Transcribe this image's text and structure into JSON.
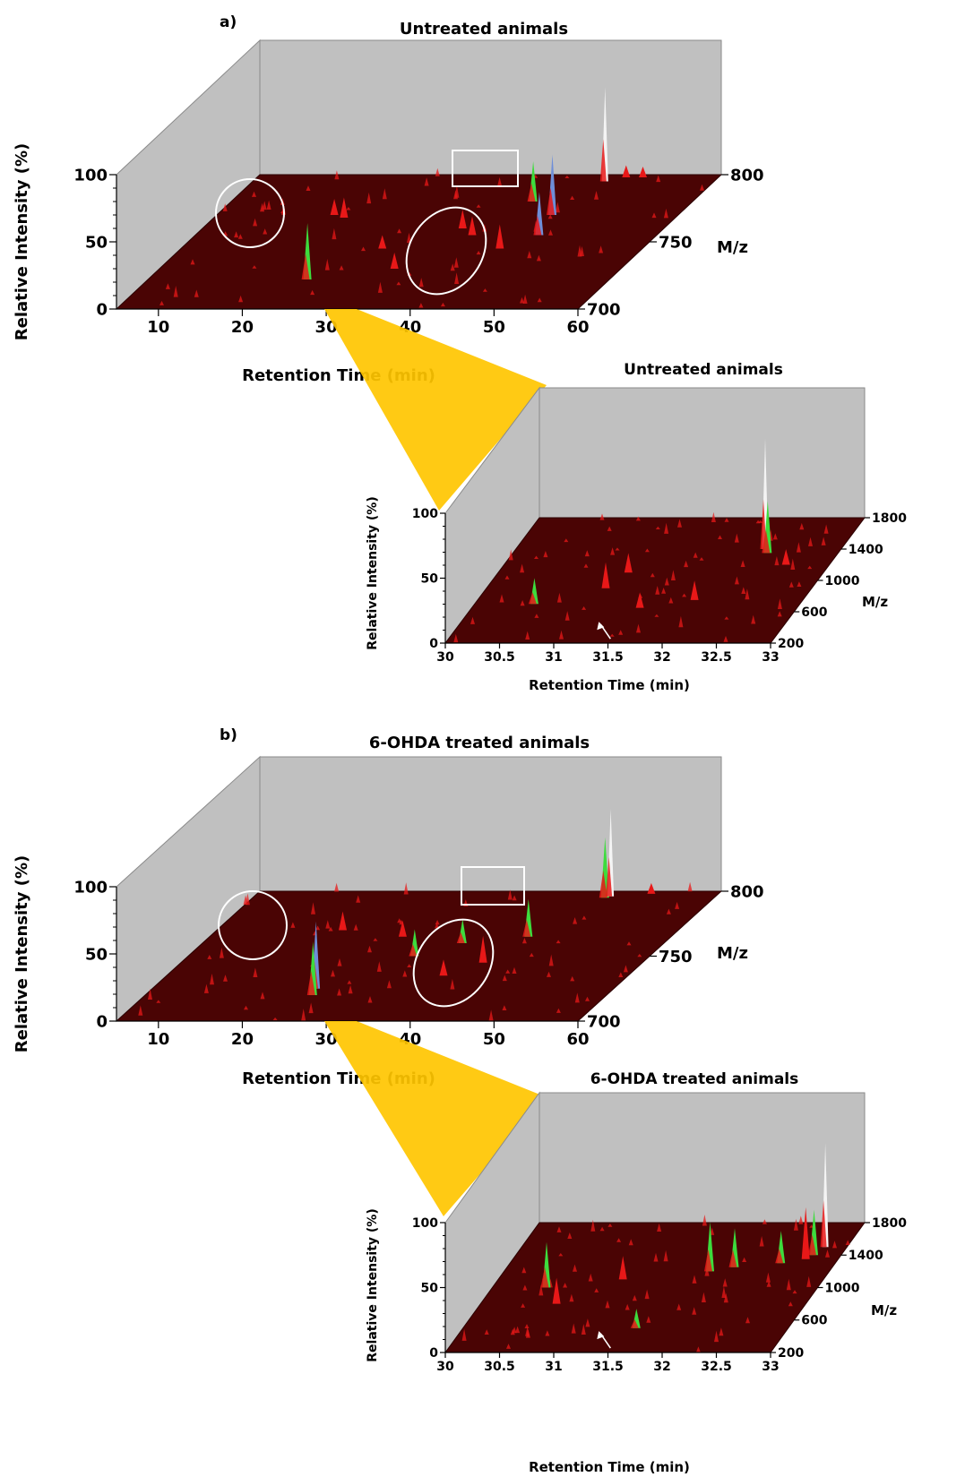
{
  "colors": {
    "wall": "#c0c0c0",
    "wall_edge": "#8a8a8a",
    "floor": "#4a0404",
    "peak_red": "#e81818",
    "peak_green": "#3ddc3d",
    "peak_blue": "#6e8ed8",
    "peak_white": "#f4f4f4",
    "zoom_fill": "#ffc600",
    "annotation": "#ffffff"
  },
  "chart_data": [
    {
      "panel_label": "a)",
      "type": "3d-spectrum",
      "title": "Untreated animals",
      "xlabel": "Retention Time (min)",
      "ylabel": "Relative Intensity (%)",
      "zlabel": "M/z",
      "xlim": [
        5,
        60
      ],
      "ylim": [
        0,
        100
      ],
      "zlim": [
        700,
        800
      ],
      "x_ticks": [
        "10",
        "20",
        "30",
        "40",
        "50",
        "60"
      ],
      "y_ticks": [
        "0",
        "50",
        "100"
      ],
      "z_ticks": [
        "700",
        "750",
        "800"
      ],
      "peaks": [
        {
          "x": 19,
          "mz": 770,
          "y": 12,
          "color": "red"
        },
        {
          "x": 20.5,
          "mz": 768,
          "y": 15,
          "color": "red"
        },
        {
          "x": 24,
          "mz": 722,
          "y": 42,
          "color": "green"
        },
        {
          "x": 29,
          "mz": 745,
          "y": 10,
          "color": "red"
        },
        {
          "x": 33,
          "mz": 730,
          "y": 12,
          "color": "red"
        },
        {
          "x": 36,
          "mz": 760,
          "y": 14,
          "color": "red"
        },
        {
          "x": 41,
          "mz": 780,
          "y": 30,
          "color": "green"
        },
        {
          "x": 43,
          "mz": 745,
          "y": 18,
          "color": "red"
        },
        {
          "x": 45,
          "mz": 770,
          "y": 45,
          "color": "blue"
        },
        {
          "x": 47,
          "mz": 795,
          "y": 70,
          "color": "white"
        },
        {
          "x": 49,
          "mz": 798,
          "y": 9,
          "color": "red"
        },
        {
          "x": 51,
          "mz": 798,
          "y": 8,
          "color": "red"
        },
        {
          "x": 38,
          "mz": 755,
          "y": 14,
          "color": "red"
        },
        {
          "x": 46,
          "mz": 755,
          "y": 32,
          "color": "blue"
        }
      ]
    },
    {
      "type": "3d-spectrum",
      "title": "Untreated animals",
      "xlabel": "Retention Time (min)",
      "ylabel": "Relative Intensity (%)",
      "zlabel": "M/z",
      "xlim": [
        30,
        33
      ],
      "ylim": [
        0,
        100
      ],
      "zlim": [
        200,
        1800
      ],
      "x_ticks": [
        "30",
        "30.5",
        "31",
        "31.5",
        "32",
        "32.5",
        "33"
      ],
      "y_ticks": [
        "0",
        "50",
        "100"
      ],
      "z_ticks": [
        "200",
        "600",
        "1000",
        "1400",
        "1800"
      ],
      "peaks": [
        {
          "x": 30.55,
          "mz": 700,
          "y": 20,
          "color": "green"
        },
        {
          "x": 31.1,
          "mz": 900,
          "y": 20,
          "color": "red"
        },
        {
          "x": 31.2,
          "mz": 1100,
          "y": 15,
          "color": "red"
        },
        {
          "x": 31.55,
          "mz": 650,
          "y": 12,
          "color": "red"
        },
        {
          "x": 32.0,
          "mz": 750,
          "y": 15,
          "color": "red"
        },
        {
          "x": 32.3,
          "mz": 1400,
          "y": 85,
          "color": "white"
        },
        {
          "x": 32.35,
          "mz": 1350,
          "y": 40,
          "color": "green"
        },
        {
          "x": 32.6,
          "mz": 1200,
          "y": 12,
          "color": "red"
        }
      ]
    },
    {
      "panel_label": "b)",
      "type": "3d-spectrum",
      "title": "6-OHDA treated animals",
      "xlabel": "Retention Time (min)",
      "ylabel": "Relative Intensity (%)",
      "zlabel": "M/z",
      "xlim": [
        5,
        60
      ],
      "ylim": [
        0,
        100
      ],
      "zlim": [
        700,
        800
      ],
      "x_ticks": [
        "10",
        "20",
        "30",
        "40",
        "50",
        "60"
      ],
      "y_ticks": [
        "0",
        "50",
        "100"
      ],
      "z_ticks": [
        "700",
        "750",
        "800"
      ],
      "peaks": [
        {
          "x": 20,
          "mz": 770,
          "y": 14,
          "color": "red"
        },
        {
          "x": 24.5,
          "mz": 725,
          "y": 50,
          "color": "blue"
        },
        {
          "x": 25,
          "mz": 720,
          "y": 40,
          "color": "green"
        },
        {
          "x": 28,
          "mz": 765,
          "y": 12,
          "color": "red"
        },
        {
          "x": 32,
          "mz": 750,
          "y": 20,
          "color": "green"
        },
        {
          "x": 36,
          "mz": 760,
          "y": 18,
          "color": "green"
        },
        {
          "x": 41,
          "mz": 745,
          "y": 20,
          "color": "red"
        },
        {
          "x": 43,
          "mz": 765,
          "y": 28,
          "color": "green"
        },
        {
          "x": 47,
          "mz": 795,
          "y": 45,
          "color": "green"
        },
        {
          "x": 47.5,
          "mz": 796,
          "y": 65,
          "color": "white"
        },
        {
          "x": 52,
          "mz": 798,
          "y": 8,
          "color": "red"
        },
        {
          "x": 38,
          "mz": 735,
          "y": 12,
          "color": "red"
        }
      ]
    },
    {
      "type": "3d-spectrum",
      "title": "6-OHDA treated animals",
      "xlabel": "Retention Time (min)",
      "ylabel": "Relative Intensity (%)",
      "zlabel": "M/z",
      "xlim": [
        30,
        33
      ],
      "ylim": [
        0,
        100
      ],
      "zlim": [
        200,
        1800
      ],
      "x_ticks": [
        "30",
        "30.5",
        "31",
        "31.5",
        "32",
        "32.5",
        "33"
      ],
      "y_ticks": [
        "0",
        "50",
        "100"
      ],
      "z_ticks": [
        "200",
        "600",
        "1000",
        "1400",
        "1800"
      ],
      "peaks": [
        {
          "x": 30.5,
          "mz": 1000,
          "y": 35,
          "color": "green"
        },
        {
          "x": 30.7,
          "mz": 800,
          "y": 20,
          "color": "red"
        },
        {
          "x": 31.15,
          "mz": 1100,
          "y": 18,
          "color": "red"
        },
        {
          "x": 31.6,
          "mz": 500,
          "y": 15,
          "color": "green"
        },
        {
          "x": 31.9,
          "mz": 1200,
          "y": 38,
          "color": "green"
        },
        {
          "x": 32.1,
          "mz": 1250,
          "y": 30,
          "color": "green"
        },
        {
          "x": 32.5,
          "mz": 1300,
          "y": 25,
          "color": "green"
        },
        {
          "x": 32.7,
          "mz": 1350,
          "y": 40,
          "color": "red"
        },
        {
          "x": 32.8,
          "mz": 1500,
          "y": 80,
          "color": "white"
        },
        {
          "x": 32.75,
          "mz": 1400,
          "y": 35,
          "color": "green"
        }
      ]
    }
  ]
}
